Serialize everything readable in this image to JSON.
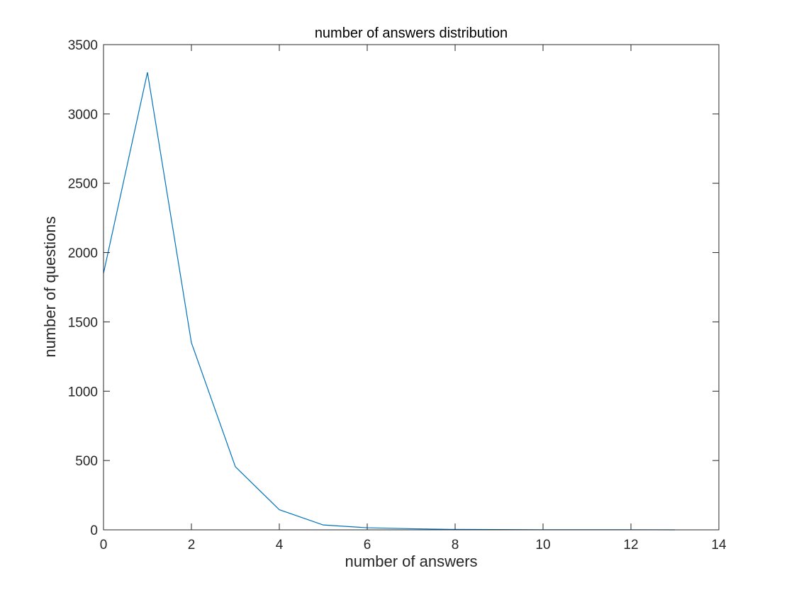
{
  "chart_data": {
    "type": "line",
    "title": "number of answers distribution",
    "xlabel": "number of answers",
    "ylabel": "number of questions",
    "xlim": [
      0,
      14
    ],
    "ylim": [
      0,
      3500
    ],
    "xticks": [
      "0",
      "2",
      "4",
      "6",
      "8",
      "10",
      "12",
      "14"
    ],
    "yticks": [
      "0",
      "500",
      "1000",
      "1500",
      "2000",
      "2500",
      "3000",
      "3500"
    ],
    "grid": false,
    "line_color": "#0072BD",
    "x": [
      0,
      1,
      2,
      3,
      4,
      5,
      6,
      7,
      8,
      9,
      10,
      11,
      12,
      13
    ],
    "y": [
      1850,
      3300,
      1350,
      455,
      145,
      35,
      15,
      8,
      3,
      2,
      1,
      1,
      1,
      0
    ]
  }
}
